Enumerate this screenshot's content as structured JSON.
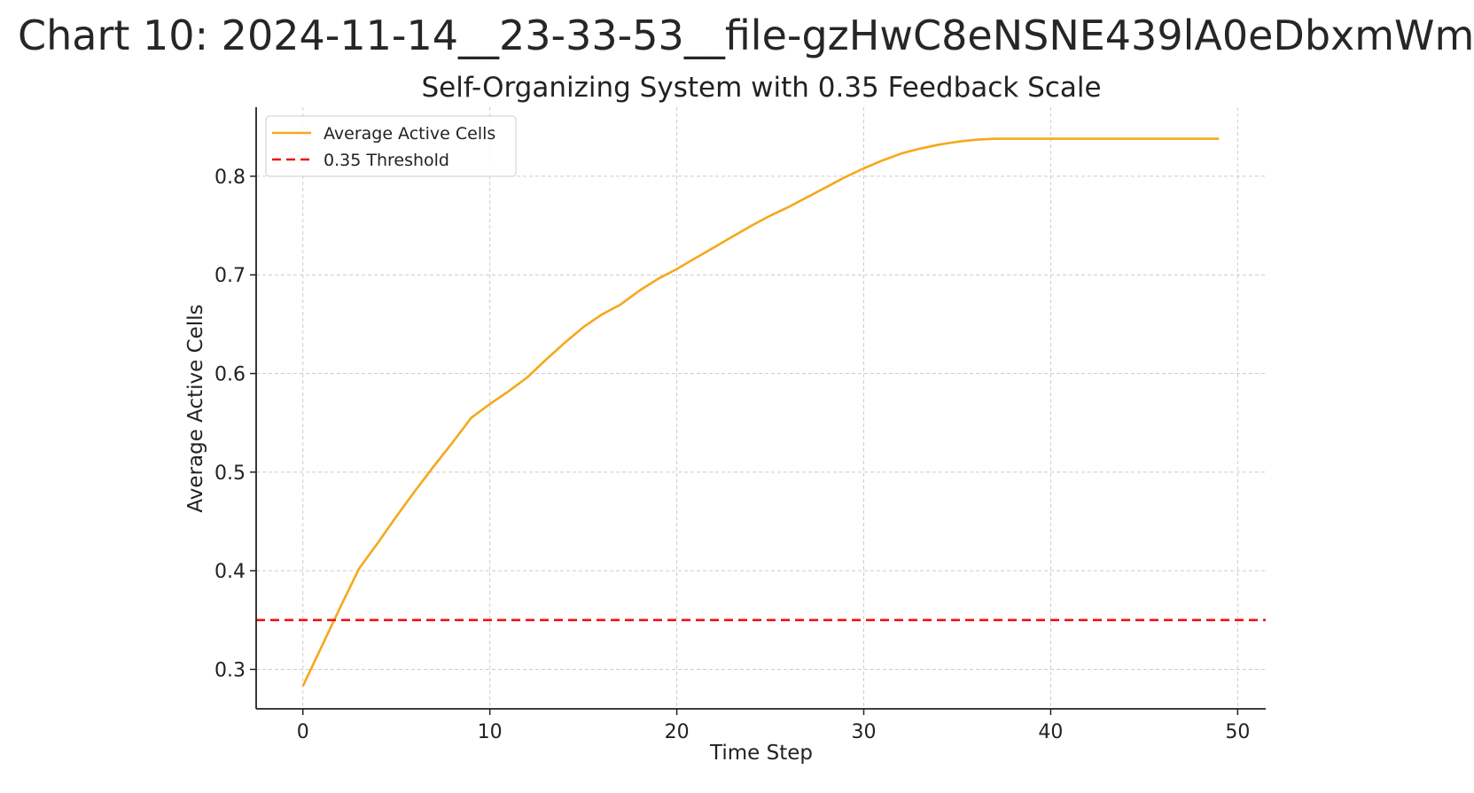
{
  "page": {
    "heading": "Chart 10: 2024-11-14__23-33-53__file-gzHwC8eNSNE439lA0eDbxmWm"
  },
  "chart_data": {
    "type": "line",
    "title": "Self-Organizing System with 0.35 Feedback Scale",
    "xlabel": "Time Step",
    "ylabel": "Average Active Cells",
    "xlim": [
      -2.5,
      51.5
    ],
    "ylim": [
      0.26,
      0.87
    ],
    "xticks": [
      0,
      10,
      20,
      30,
      40,
      50
    ],
    "yticks": [
      0.3,
      0.4,
      0.5,
      0.6,
      0.7,
      0.8
    ],
    "xtick_labels": [
      "0",
      "10",
      "20",
      "30",
      "40",
      "50"
    ],
    "ytick_labels": [
      "0.3",
      "0.4",
      "0.5",
      "0.6",
      "0.7",
      "0.8"
    ],
    "grid": true,
    "legend_position": "top-left",
    "series": [
      {
        "name": "Average Active Cells",
        "color": "#f5a81c",
        "style": "solid",
        "x": [
          0,
          1,
          2,
          3,
          4,
          5,
          6,
          7,
          8,
          9,
          10,
          11,
          12,
          13,
          14,
          15,
          16,
          17,
          18,
          19,
          20,
          21,
          22,
          23,
          24,
          25,
          26,
          27,
          28,
          29,
          30,
          31,
          32,
          33,
          34,
          35,
          36,
          37,
          38,
          39,
          40,
          41,
          42,
          43,
          44,
          45,
          46,
          47,
          48,
          49
        ],
        "y": [
          0.283,
          0.323,
          0.363,
          0.402,
          0.428,
          0.455,
          0.481,
          0.506,
          0.53,
          0.555,
          0.569,
          0.582,
          0.596,
          0.614,
          0.631,
          0.647,
          0.66,
          0.67,
          0.684,
          0.696,
          0.706,
          0.717,
          0.728,
          0.739,
          0.75,
          0.76,
          0.769,
          0.779,
          0.789,
          0.799,
          0.808,
          0.816,
          0.823,
          0.828,
          0.832,
          0.835,
          0.837,
          0.838,
          0.838,
          0.838,
          0.838,
          0.838,
          0.838,
          0.838,
          0.838,
          0.838,
          0.838,
          0.838,
          0.838,
          0.838
        ]
      },
      {
        "name": "0.35 Threshold",
        "color": "#ee1111",
        "style": "dashed",
        "hline": 0.35
      }
    ]
  }
}
